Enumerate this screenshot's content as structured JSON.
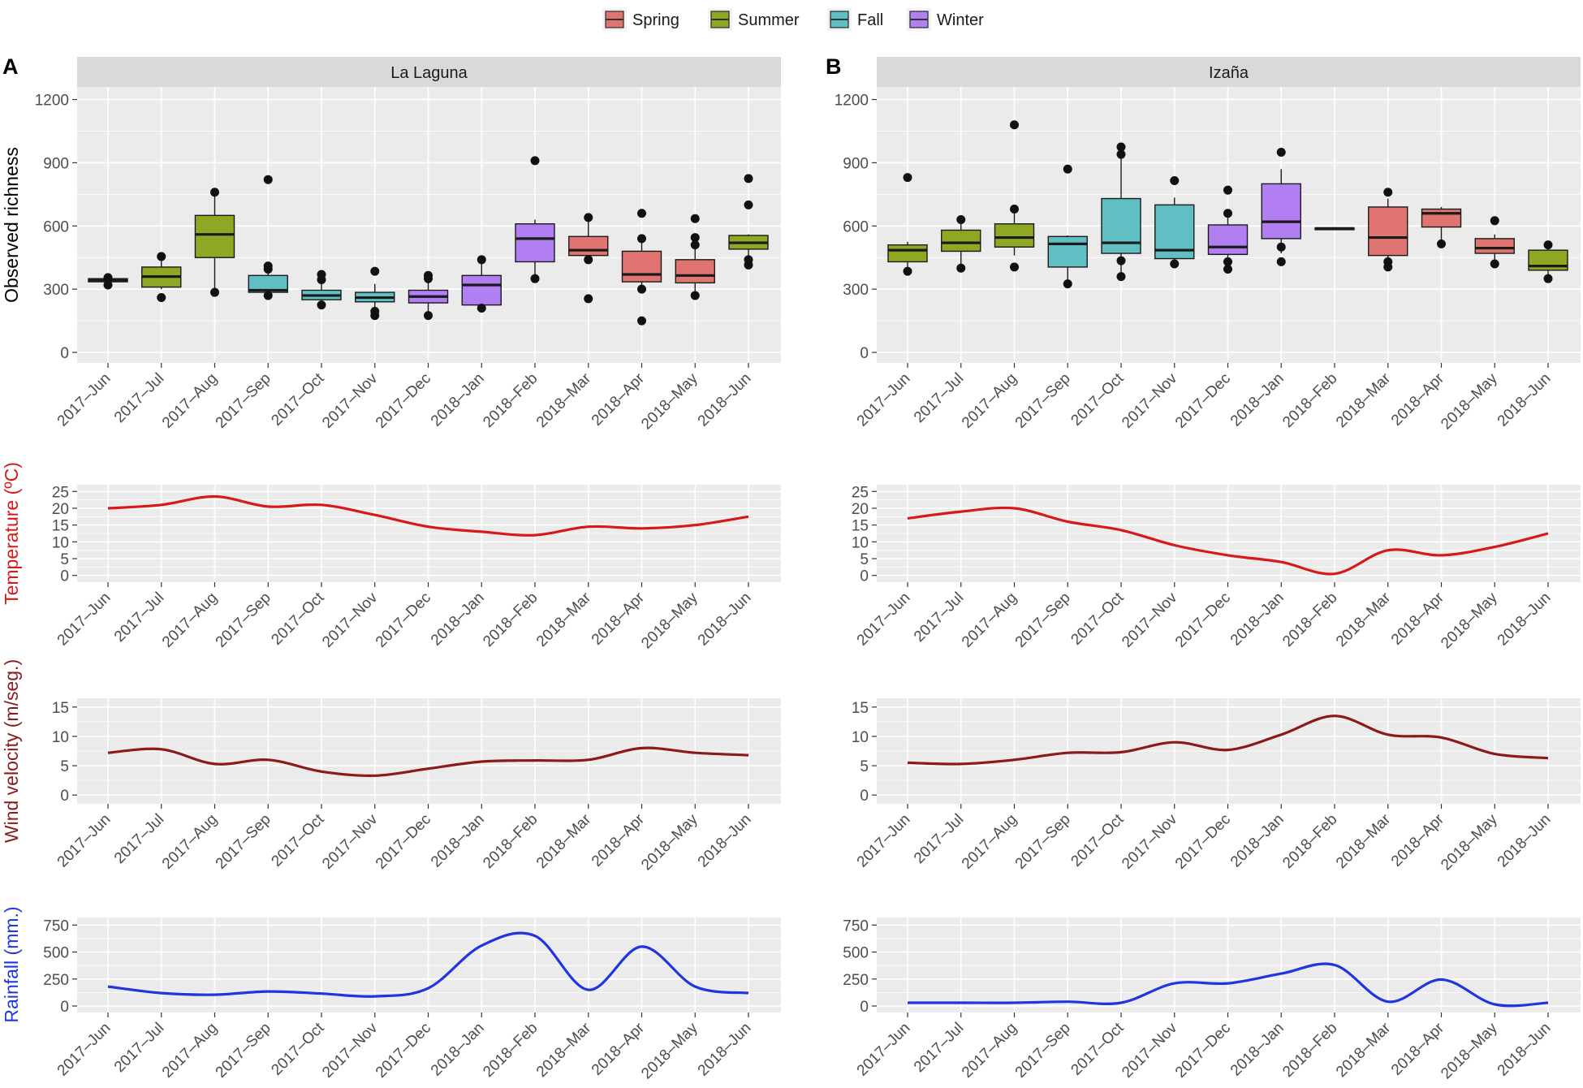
{
  "legend": [
    {
      "label": "Spring",
      "color": "#e07470"
    },
    {
      "label": "Summer",
      "color": "#8fa823"
    },
    {
      "label": "Fall",
      "color": "#5fbfc2"
    },
    {
      "label": "Winter",
      "color": "#b27ff2"
    }
  ],
  "panel_labels": [
    "A",
    "B"
  ],
  "chart_data": [
    {
      "type": "box",
      "panel": "A",
      "facet": "La Laguna",
      "ylabel": "Observed richness",
      "ylim": [
        -50,
        1260
      ],
      "yticks": [
        0,
        300,
        600,
        900,
        1200
      ],
      "categories": [
        "2017–Jun",
        "2017–Jul",
        "2017–Aug",
        "2017–Sep",
        "2017–Oct",
        "2017–Nov",
        "2017–Dec",
        "2018–Jan",
        "2018–Feb",
        "2018–Mar",
        "2018–Apr",
        "2018–May",
        "2018–Jun"
      ],
      "boxes": [
        {
          "season": "Summer",
          "lw": 332,
          "q1": 335,
          "med": 342,
          "q3": 350,
          "uw": 355,
          "out": [
            320,
            355
          ]
        },
        {
          "season": "Summer",
          "lw": 300,
          "q1": 310,
          "med": 360,
          "q3": 405,
          "uw": 450,
          "out": [
            260,
            455
          ]
        },
        {
          "season": "Summer",
          "lw": 290,
          "q1": 450,
          "med": 560,
          "q3": 650,
          "uw": 760,
          "out": [
            285,
            760
          ]
        },
        {
          "season": "Fall",
          "lw": 265,
          "q1": 285,
          "med": 295,
          "q3": 365,
          "uw": 395,
          "out": [
            270,
            395,
            410,
            820
          ]
        },
        {
          "season": "Fall",
          "lw": 230,
          "q1": 250,
          "med": 270,
          "q3": 295,
          "uw": 325,
          "out": [
            225,
            345,
            370
          ]
        },
        {
          "season": "Fall",
          "lw": 190,
          "q1": 240,
          "med": 260,
          "q3": 285,
          "uw": 325,
          "out": [
            175,
            195,
            385
          ]
        },
        {
          "season": "Winter",
          "lw": 195,
          "q1": 235,
          "med": 265,
          "q3": 295,
          "uw": 335,
          "out": [
            175,
            350,
            365
          ]
        },
        {
          "season": "Winter",
          "lw": 215,
          "q1": 225,
          "med": 320,
          "q3": 365,
          "uw": 420,
          "out": [
            210,
            440
          ]
        },
        {
          "season": "Winter",
          "lw": 350,
          "q1": 430,
          "med": 540,
          "q3": 610,
          "uw": 630,
          "out": [
            350,
            910
          ]
        },
        {
          "season": "Spring",
          "lw": 440,
          "q1": 460,
          "med": 485,
          "q3": 550,
          "uw": 640,
          "out": [
            255,
            440,
            640
          ]
        },
        {
          "season": "Spring",
          "lw": 300,
          "q1": 335,
          "med": 370,
          "q3": 480,
          "uw": 535,
          "out": [
            150,
            300,
            540,
            660
          ]
        },
        {
          "season": "Spring",
          "lw": 270,
          "q1": 330,
          "med": 365,
          "q3": 440,
          "uw": 490,
          "out": [
            270,
            510,
            545,
            635
          ]
        },
        {
          "season": "Summer",
          "lw": 430,
          "q1": 490,
          "med": 520,
          "q3": 555,
          "uw": 560,
          "out": [
            415,
            440,
            700,
            825
          ]
        }
      ]
    },
    {
      "type": "box",
      "panel": "B",
      "facet": "Izaña",
      "ylabel": "",
      "ylim": [
        -50,
        1260
      ],
      "yticks": [
        0,
        300,
        600,
        900,
        1200
      ],
      "categories": [
        "2017–Jun",
        "2017–Jul",
        "2017–Aug",
        "2017–Sep",
        "2017–Oct",
        "2017–Nov",
        "2017–Dec",
        "2018–Jan",
        "2018–Feb",
        "2018–Mar",
        "2018–Apr",
        "2018–May",
        "2018–Jun"
      ],
      "boxes": [
        {
          "season": "Summer",
          "lw": 400,
          "q1": 430,
          "med": 485,
          "q3": 510,
          "uw": 525,
          "out": [
            385,
            830
          ]
        },
        {
          "season": "Summer",
          "lw": 420,
          "q1": 480,
          "med": 520,
          "q3": 580,
          "uw": 610,
          "out": [
            400,
            630
          ]
        },
        {
          "season": "Summer",
          "lw": 460,
          "q1": 500,
          "med": 545,
          "q3": 610,
          "uw": 680,
          "out": [
            405,
            680,
            1080
          ]
        },
        {
          "season": "Fall",
          "lw": 340,
          "q1": 405,
          "med": 515,
          "q3": 550,
          "uw": 555,
          "out": [
            325,
            870
          ]
        },
        {
          "season": "Fall",
          "lw": 380,
          "q1": 470,
          "med": 520,
          "q3": 730,
          "uw": 980,
          "out": [
            360,
            435,
            940,
            975
          ]
        },
        {
          "season": "Fall",
          "lw": 430,
          "q1": 445,
          "med": 485,
          "q3": 700,
          "uw": 735,
          "out": [
            420,
            815
          ]
        },
        {
          "season": "Winter",
          "lw": 430,
          "q1": 465,
          "med": 500,
          "q3": 605,
          "uw": 640,
          "out": [
            395,
            430,
            660,
            770
          ]
        },
        {
          "season": "Winter",
          "lw": 470,
          "q1": 540,
          "med": 620,
          "q3": 800,
          "uw": 870,
          "out": [
            430,
            500,
            950
          ]
        },
        {
          "season": "Winter",
          "lw": 580,
          "q1": 583,
          "med": 588,
          "q3": 590,
          "uw": 592,
          "out": []
        },
        {
          "season": "Spring",
          "lw": 420,
          "q1": 460,
          "med": 545,
          "q3": 690,
          "uw": 730,
          "out": [
            405,
            430,
            760
          ]
        },
        {
          "season": "Spring",
          "lw": 520,
          "q1": 595,
          "med": 660,
          "q3": 680,
          "uw": 690,
          "out": [
            515
          ]
        },
        {
          "season": "Spring",
          "lw": 440,
          "q1": 470,
          "med": 495,
          "q3": 540,
          "uw": 560,
          "out": [
            420,
            625
          ]
        },
        {
          "season": "Summer",
          "lw": 360,
          "q1": 390,
          "med": 410,
          "q3": 485,
          "uw": 505,
          "out": [
            350,
            510
          ]
        }
      ]
    },
    {
      "type": "line",
      "panel": "A",
      "ylabel": "Temperature (ºC)",
      "color": "#d7191c",
      "ylim": [
        -2,
        27
      ],
      "yticks": [
        0,
        5,
        10,
        15,
        20,
        25
      ],
      "categories": [
        "2017–Jun",
        "2017–Jul",
        "2017–Aug",
        "2017–Sep",
        "2017–Oct",
        "2017–Nov",
        "2017–Dec",
        "2018–Jan",
        "2018–Feb",
        "2018–Mar",
        "2018–Apr",
        "2018–May",
        "2018–Jun"
      ],
      "values": [
        20,
        21,
        23.5,
        20.5,
        21,
        18,
        14.5,
        13,
        12,
        14.5,
        14,
        15,
        17.5
      ]
    },
    {
      "type": "line",
      "panel": "B",
      "ylabel": "",
      "color": "#d7191c",
      "ylim": [
        -2,
        27
      ],
      "yticks": [
        0,
        5,
        10,
        15,
        20,
        25
      ],
      "categories": [
        "2017–Jun",
        "2017–Jul",
        "2017–Aug",
        "2017–Sep",
        "2017–Oct",
        "2017–Nov",
        "2017–Dec",
        "2018–Jan",
        "2018–Feb",
        "2018–Mar",
        "2018–Apr",
        "2018–May",
        "2018–Jun"
      ],
      "values": [
        17,
        19,
        20,
        16,
        13.5,
        9,
        6,
        4,
        0.5,
        7.5,
        6,
        8.5,
        12.5
      ]
    },
    {
      "type": "line",
      "panel": "A",
      "ylabel": "Wind velocity (m/seg.)",
      "color": "#8b1a1a",
      "ylim": [
        -1.5,
        16.5
      ],
      "yticks": [
        0,
        5,
        10,
        15
      ],
      "categories": [
        "2017–Jun",
        "2017–Jul",
        "2017–Aug",
        "2017–Sep",
        "2017–Oct",
        "2017–Nov",
        "2017–Dec",
        "2018–Jan",
        "2018–Feb",
        "2018–Mar",
        "2018–Apr",
        "2018–May",
        "2018–Jun"
      ],
      "values": [
        7.2,
        7.8,
        5.3,
        6,
        4,
        3.3,
        4.5,
        5.7,
        5.9,
        6,
        8,
        7.2,
        6.8
      ]
    },
    {
      "type": "line",
      "panel": "B",
      "ylabel": "",
      "color": "#8b1a1a",
      "ylim": [
        -1.5,
        16.5
      ],
      "yticks": [
        0,
        5,
        10,
        15
      ],
      "categories": [
        "2017–Jun",
        "2017–Jul",
        "2017–Aug",
        "2017–Sep",
        "2017–Oct",
        "2017–Nov",
        "2017–Dec",
        "2018–Jan",
        "2018–Feb",
        "2018–Mar",
        "2018–Apr",
        "2018–May",
        "2018–Jun"
      ],
      "values": [
        5.5,
        5.3,
        6,
        7.2,
        7.3,
        9,
        7.7,
        10.3,
        13.5,
        10.3,
        9.8,
        7,
        6.3
      ]
    },
    {
      "type": "line",
      "panel": "A",
      "ylabel": "Rainfall (mm.)",
      "color": "#1f35e0",
      "ylim": [
        -60,
        820
      ],
      "yticks": [
        0,
        250,
        500,
        750
      ],
      "categories": [
        "2017–Jun",
        "2017–Jul",
        "2017–Aug",
        "2017–Sep",
        "2017–Oct",
        "2017–Nov",
        "2017–Dec",
        "2018–Jan",
        "2018–Feb",
        "2018–Mar",
        "2018–Apr",
        "2018–May",
        "2018–Jun"
      ],
      "values": [
        180,
        120,
        105,
        135,
        115,
        90,
        165,
        560,
        650,
        150,
        550,
        180,
        120
      ]
    },
    {
      "type": "line",
      "panel": "B",
      "ylabel": "",
      "color": "#1f35e0",
      "ylim": [
        -60,
        820
      ],
      "yticks": [
        0,
        250,
        500,
        750
      ],
      "categories": [
        "2017–Jun",
        "2017–Jul",
        "2017–Aug",
        "2017–Sep",
        "2017–Oct",
        "2017–Nov",
        "2017–Dec",
        "2018–Jan",
        "2018–Feb",
        "2018–Mar",
        "2018–Apr",
        "2018–May",
        "2018–Jun"
      ],
      "values": [
        30,
        30,
        30,
        40,
        30,
        210,
        210,
        300,
        380,
        40,
        245,
        15,
        30
      ]
    }
  ]
}
